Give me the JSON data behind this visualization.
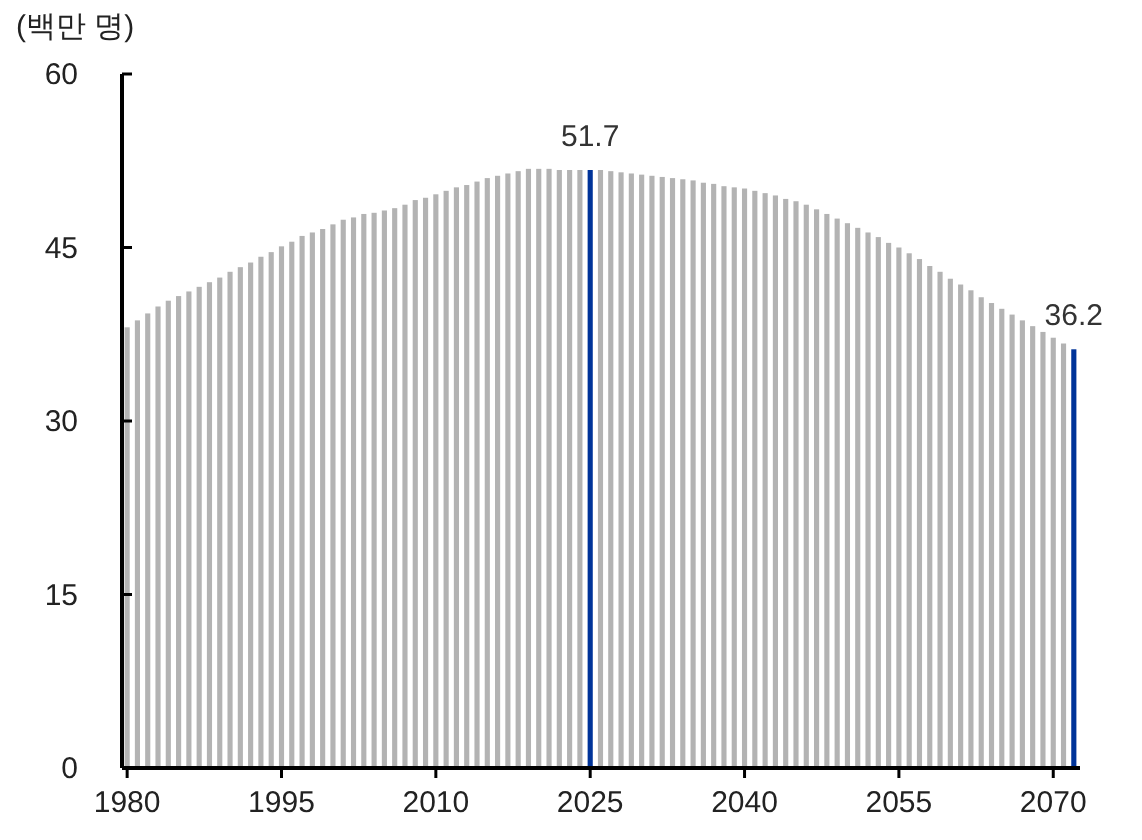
{
  "chart_data": {
    "type": "bar",
    "ylabel": "(백만 명)",
    "x": [
      1980,
      1981,
      1982,
      1983,
      1984,
      1985,
      1986,
      1987,
      1988,
      1989,
      1990,
      1991,
      1992,
      1993,
      1994,
      1995,
      1996,
      1997,
      1998,
      1999,
      2000,
      2001,
      2002,
      2003,
      2004,
      2005,
      2006,
      2007,
      2008,
      2009,
      2010,
      2011,
      2012,
      2013,
      2014,
      2015,
      2016,
      2017,
      2018,
      2019,
      2020,
      2021,
      2022,
      2023,
      2024,
      2025,
      2026,
      2027,
      2028,
      2029,
      2030,
      2031,
      2032,
      2033,
      2034,
      2035,
      2036,
      2037,
      2038,
      2039,
      2040,
      2041,
      2042,
      2043,
      2044,
      2045,
      2046,
      2047,
      2048,
      2049,
      2050,
      2051,
      2052,
      2053,
      2054,
      2055,
      2056,
      2057,
      2058,
      2059,
      2060,
      2061,
      2062,
      2063,
      2064,
      2065,
      2066,
      2067,
      2068,
      2069,
      2070,
      2071,
      2072
    ],
    "values": [
      38.1,
      38.7,
      39.3,
      39.9,
      40.4,
      40.8,
      41.2,
      41.6,
      42.0,
      42.4,
      42.9,
      43.3,
      43.7,
      44.2,
      44.6,
      45.1,
      45.5,
      46.0,
      46.3,
      46.6,
      47.0,
      47.4,
      47.6,
      47.9,
      48.0,
      48.2,
      48.4,
      48.7,
      49.1,
      49.3,
      49.6,
      49.9,
      50.2,
      50.4,
      50.7,
      51.0,
      51.2,
      51.4,
      51.6,
      51.8,
      51.8,
      51.8,
      51.7,
      51.7,
      51.7,
      51.7,
      51.7,
      51.6,
      51.5,
      51.4,
      51.3,
      51.2,
      51.1,
      51.0,
      50.9,
      50.8,
      50.6,
      50.5,
      50.3,
      50.2,
      50.1,
      49.9,
      49.7,
      49.5,
      49.2,
      49.0,
      48.7,
      48.3,
      47.9,
      47.5,
      47.1,
      46.7,
      46.3,
      45.9,
      45.4,
      45.0,
      44.5,
      44.0,
      43.4,
      42.9,
      42.3,
      41.8,
      41.3,
      40.7,
      40.2,
      39.7,
      39.2,
      38.7,
      38.2,
      37.7,
      37.2,
      36.7,
      36.2
    ],
    "colors": [
      "#b3b3b3",
      "#b3b3b3",
      "#b3b3b3",
      "#b3b3b3",
      "#b3b3b3",
      "#b3b3b3",
      "#b3b3b3",
      "#b3b3b3",
      "#b3b3b3",
      "#b3b3b3",
      "#b3b3b3",
      "#b3b3b3",
      "#b3b3b3",
      "#b3b3b3",
      "#b3b3b3",
      "#b3b3b3",
      "#b3b3b3",
      "#b3b3b3",
      "#b3b3b3",
      "#b3b3b3",
      "#b3b3b3",
      "#b3b3b3",
      "#b3b3b3",
      "#b3b3b3",
      "#b3b3b3",
      "#b3b3b3",
      "#b3b3b3",
      "#b3b3b3",
      "#b3b3b3",
      "#b3b3b3",
      "#b3b3b3",
      "#b3b3b3",
      "#b3b3b3",
      "#b3b3b3",
      "#b3b3b3",
      "#b3b3b3",
      "#b3b3b3",
      "#b3b3b3",
      "#b3b3b3",
      "#b3b3b3",
      "#b3b3b3",
      "#b3b3b3",
      "#b3b3b3",
      "#b3b3b3",
      "#b3b3b3",
      "#003399",
      "#b3b3b3",
      "#b3b3b3",
      "#b3b3b3",
      "#b3b3b3",
      "#b3b3b3",
      "#b3b3b3",
      "#b3b3b3",
      "#b3b3b3",
      "#b3b3b3",
      "#b3b3b3",
      "#b3b3b3",
      "#b3b3b3",
      "#b3b3b3",
      "#b3b3b3",
      "#b3b3b3",
      "#b3b3b3",
      "#b3b3b3",
      "#b3b3b3",
      "#b3b3b3",
      "#b3b3b3",
      "#b3b3b3",
      "#b3b3b3",
      "#b3b3b3",
      "#b3b3b3",
      "#b3b3b3",
      "#b3b3b3",
      "#b3b3b3",
      "#b3b3b3",
      "#b3b3b3",
      "#b3b3b3",
      "#b3b3b3",
      "#b3b3b3",
      "#b3b3b3",
      "#b3b3b3",
      "#b3b3b3",
      "#b3b3b3",
      "#b3b3b3",
      "#b3b3b3",
      "#b3b3b3",
      "#b3b3b3",
      "#b3b3b3",
      "#b3b3b3",
      "#b3b3b3",
      "#b3b3b3",
      "#b3b3b3",
      "#b3b3b3",
      "#003399"
    ],
    "value_labels": [
      null,
      null,
      null,
      null,
      null,
      null,
      null,
      null,
      null,
      null,
      null,
      null,
      null,
      null,
      null,
      null,
      null,
      null,
      null,
      null,
      null,
      null,
      null,
      null,
      null,
      null,
      null,
      null,
      null,
      null,
      null,
      null,
      null,
      null,
      null,
      null,
      null,
      null,
      null,
      null,
      null,
      null,
      null,
      null,
      null,
      "51.7",
      null,
      null,
      null,
      null,
      null,
      null,
      null,
      null,
      null,
      null,
      null,
      null,
      null,
      null,
      null,
      null,
      null,
      null,
      null,
      null,
      null,
      null,
      null,
      null,
      null,
      null,
      null,
      null,
      null,
      null,
      null,
      null,
      null,
      null,
      null,
      null,
      null,
      null,
      null,
      null,
      null,
      null,
      null,
      null,
      null,
      null,
      "36.2"
    ],
    "xlim": [
      1979.5,
      2072.6
    ],
    "ylim": [
      0,
      60
    ],
    "xticks": [
      1980,
      1995,
      2010,
      2025,
      2040,
      2055,
      2070
    ],
    "yticks": [
      0,
      15,
      30,
      45,
      60
    ]
  }
}
